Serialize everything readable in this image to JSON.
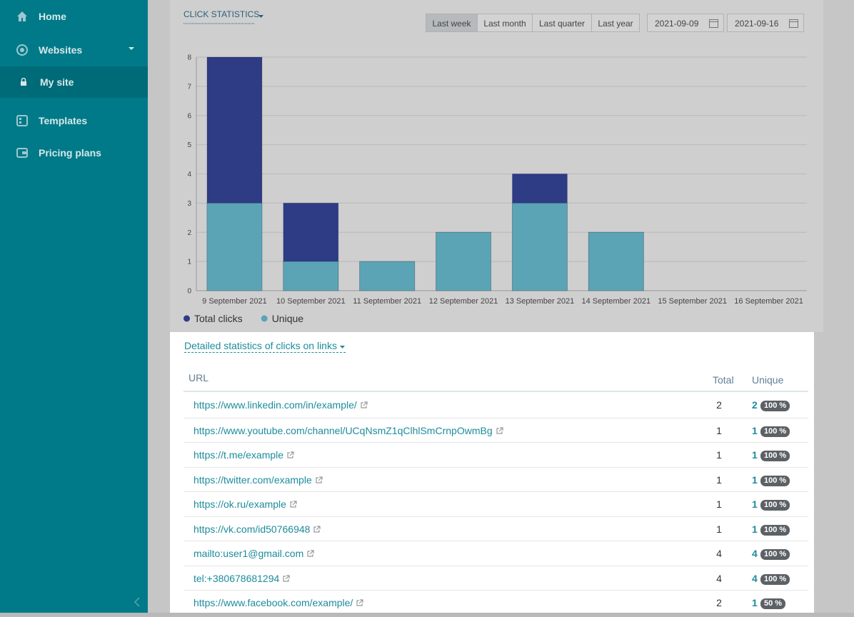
{
  "sidebar": {
    "items": [
      "Home",
      "Websites",
      "My site",
      "Templates",
      "Pricing plans"
    ]
  },
  "toolbar": {
    "periods": [
      "Last week",
      "Last month",
      "Last quarter",
      "Last year"
    ],
    "date_from": "2021-09-09",
    "date_to": "2021-09-16"
  },
  "chart_data": {
    "type": "bar",
    "title": "CLICK STATISTICS",
    "categories": [
      "9 September 2021",
      "10 September 2021",
      "11 September 2021",
      "12 September 2021",
      "13 September 2021",
      "14 September 2021",
      "15 September 2021",
      "16 September 2021"
    ],
    "series": [
      {
        "name": "Total clicks",
        "color": "#2e3b85",
        "values": [
          8,
          3,
          1,
          2,
          4,
          2,
          0,
          0
        ]
      },
      {
        "name": "Unique",
        "color": "#5aa4b6",
        "values": [
          3,
          1,
          1,
          2,
          3,
          2,
          0,
          0
        ]
      }
    ],
    "ylim": [
      0,
      8
    ],
    "yticks": [
      0,
      1,
      2,
      3,
      4,
      5,
      6,
      7,
      8
    ],
    "grid": true,
    "legend": "bottom-left"
  },
  "table": {
    "title": "Detailed statistics of clicks on links",
    "headers": [
      "URL",
      "Total",
      "Unique"
    ],
    "rows": [
      [
        "https://www.linkedin.com/in/example/",
        2,
        2,
        "100 %"
      ],
      [
        "https://www.youtube.com/channel/UCqNsmZ1qClhlSmCrnpOwmBg",
        1,
        1,
        "100 %"
      ],
      [
        "https://t.me/example",
        1,
        1,
        "100 %"
      ],
      [
        "https://twitter.com/example",
        1,
        1,
        "100 %"
      ],
      [
        "https://ok.ru/example",
        1,
        1,
        "100 %"
      ],
      [
        "https://vk.com/id50766948",
        1,
        1,
        "100 %"
      ],
      [
        "mailto:user1@gmail.com",
        4,
        4,
        "100 %"
      ],
      [
        "tel:+380678681294",
        4,
        4,
        "100 %"
      ],
      [
        "https://www.facebook.com/example/",
        2,
        1,
        "50 %"
      ]
    ]
  }
}
